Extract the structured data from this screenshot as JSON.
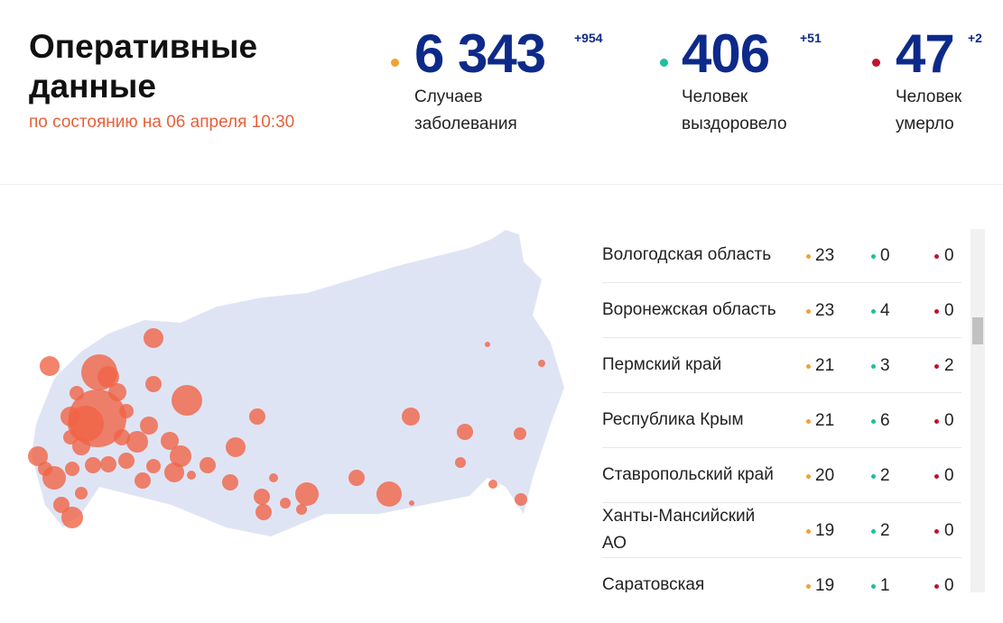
{
  "header": {
    "title": "Оперативные данные",
    "subtitle": "по состоянию на 06 апреля 10:30"
  },
  "stats": [
    {
      "value": "6 343",
      "delta": "+954",
      "label": "Случаев заболевания"
    },
    {
      "value": "406",
      "delta": "+51",
      "label": "Человек выздоровело"
    },
    {
      "value": "47",
      "delta": "+2",
      "label": "Человек умерло"
    }
  ],
  "table": {
    "rows": [
      [
        "Вологодская область",
        23,
        0,
        0
      ],
      [
        "Воронежская область",
        23,
        4,
        0
      ],
      [
        "Пермский край",
        21,
        3,
        2
      ],
      [
        "Республика Крым",
        21,
        6,
        0
      ],
      [
        "Ставропольский край",
        20,
        2,
        0
      ],
      [
        "Ханты-Мансийский АО",
        19,
        2,
        0
      ],
      [
        "Саратовская",
        19,
        1,
        0
      ]
    ]
  }
}
